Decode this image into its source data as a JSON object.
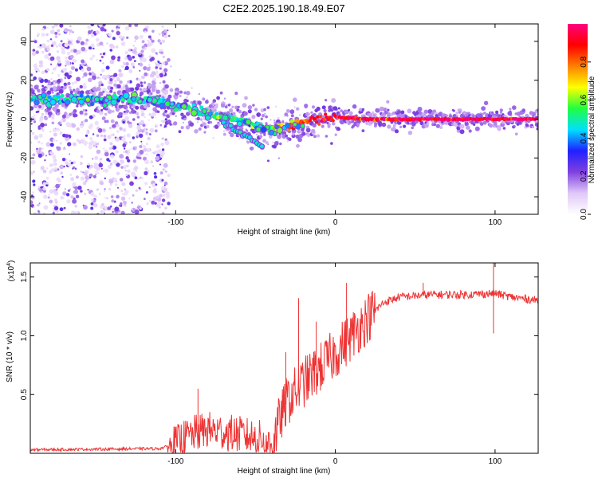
{
  "title": "C2E2.2025.190.18.49.E07",
  "chart_data": [
    {
      "type": "heatmap",
      "xlabel": "Height of straight line (km)",
      "ylabel": "Frequency (Hz)",
      "xlim": [
        -191,
        127
      ],
      "ylim": [
        -49,
        49
      ],
      "x_ticks": [
        -100,
        0,
        100
      ],
      "x_tick_labels": [
        "-100",
        "0",
        "100"
      ],
      "y_ticks": [
        -40,
        -20,
        0,
        20,
        40
      ],
      "y_tick_labels": [
        "-40",
        "-20",
        "0",
        "20",
        "40"
      ],
      "colorbar": {
        "label": "Normalized spectral amplitude",
        "range": [
          0,
          1
        ],
        "ticks": [
          0.0,
          0.2,
          0.4,
          0.6,
          0.8
        ],
        "tick_labels": [
          "0.0",
          "0.2",
          "0.4",
          "0.6",
          "0.8"
        ],
        "colors": [
          "#ffffff",
          "#e0c8f8",
          "#8040e0",
          "#2020ff",
          "#00e0ff",
          "#20ff40",
          "#ffff00",
          "#ff8000",
          "#ff0000",
          "#ff0080"
        ]
      },
      "ridge": {
        "x": [
          -190,
          -170,
          -150,
          -130,
          -110,
          -95,
          -80,
          -65,
          -50,
          -40,
          -30,
          -20,
          -10,
          0,
          20,
          60,
          100,
          127
        ],
        "freq": [
          10,
          10,
          10,
          10,
          9,
          6,
          3,
          0,
          -3,
          -5,
          -4,
          -1,
          0,
          1,
          0,
          0,
          0,
          0
        ],
        "amplitude": [
          0.45,
          0.5,
          0.45,
          0.45,
          0.45,
          0.5,
          0.5,
          0.5,
          0.5,
          0.55,
          0.7,
          0.8,
          0.9,
          0.9,
          0.95,
          0.95,
          0.95,
          0.95
        ]
      },
      "secondary_ridge": {
        "x": [
          -70,
          -60,
          -50,
          -45
        ],
        "freq": [
          -2,
          -7,
          -11,
          -14
        ]
      }
    },
    {
      "type": "line",
      "xlabel": "Height of straight line (km)",
      "ylabel": "SNR (10 * v/v)",
      "multiplier_label": "(x10",
      "multiplier_exp": "4",
      "multiplier_close": ")",
      "xlim": [
        -191,
        127
      ],
      "ylim": [
        0,
        1.62
      ],
      "x_ticks": [
        -100,
        0,
        100
      ],
      "x_tick_labels": [
        "-100",
        "0",
        "100"
      ],
      "y_ticks": [
        0.5,
        1.0,
        1.5
      ],
      "y_tick_labels": [
        "0.5",
        "1.0",
        "1.5"
      ],
      "color": "#ee3333",
      "trend": {
        "x": [
          -191,
          -110,
          -100,
          -90,
          -80,
          -70,
          -60,
          -45,
          -40,
          -35,
          -30,
          -20,
          -10,
          0,
          10,
          20,
          30,
          40,
          60,
          80,
          100,
          110,
          127
        ],
        "y": [
          0.03,
          0.04,
          0.08,
          0.16,
          0.2,
          0.18,
          0.16,
          0.12,
          0.05,
          0.28,
          0.45,
          0.6,
          0.72,
          0.85,
          1.0,
          1.15,
          1.28,
          1.33,
          1.35,
          1.35,
          1.36,
          1.33,
          1.3
        ]
      },
      "spikes": [
        {
          "x": -86,
          "y": 0.55
        },
        {
          "x": -31,
          "y": 0.86
        },
        {
          "x": -23,
          "y": 1.32
        },
        {
          "x": -12,
          "y": 1.12
        },
        {
          "x": 7,
          "y": 1.45
        },
        {
          "x": 55,
          "y": 1.45
        },
        {
          "x": 99,
          "y": 1.62
        },
        {
          "x": 99,
          "y": 1.02
        }
      ]
    }
  ]
}
